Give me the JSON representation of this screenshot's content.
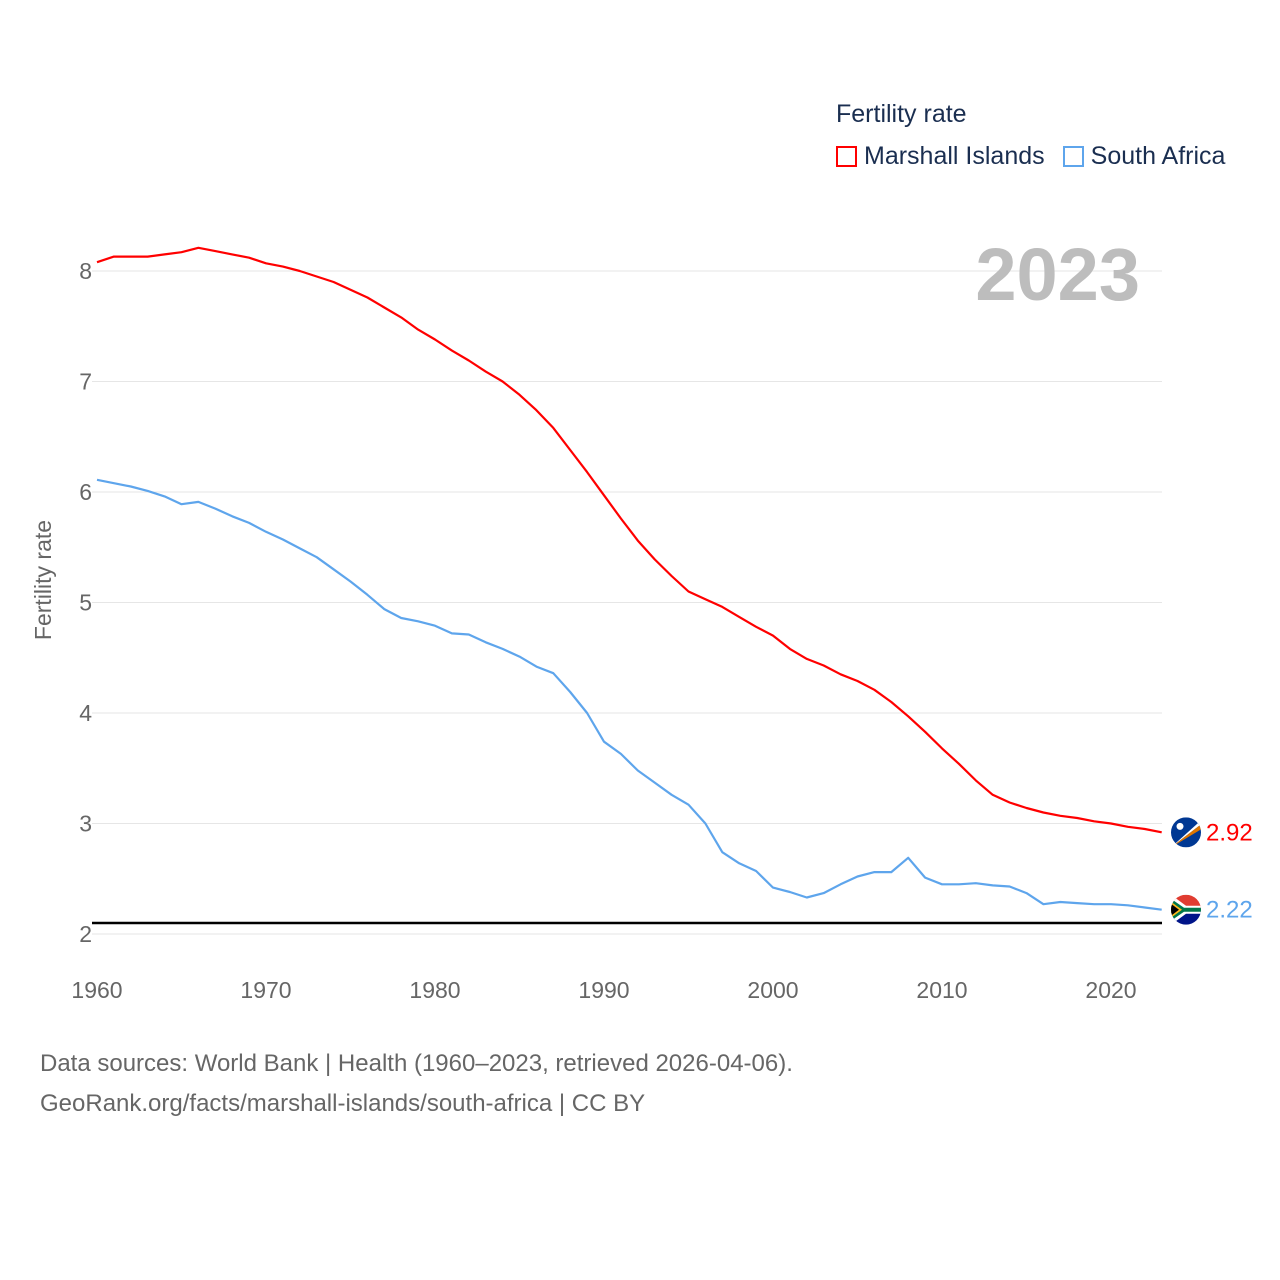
{
  "chart_data": {
    "type": "line",
    "title": "Fertility rate",
    "ylabel": "Fertility rate",
    "xlabel": "",
    "xlim": [
      1960,
      2023
    ],
    "ylim": [
      2,
      8
    ],
    "x_ticks": [
      1960,
      1970,
      1980,
      1990,
      2000,
      2010,
      2020
    ],
    "y_ticks": [
      2,
      3,
      4,
      5,
      6,
      7,
      8
    ],
    "grid": true,
    "legend_position": "top-right",
    "year_label": "2023",
    "reference_line": {
      "value": 2.1,
      "color": "#000000"
    },
    "x": [
      1960,
      1961,
      1962,
      1963,
      1964,
      1965,
      1966,
      1967,
      1968,
      1969,
      1970,
      1971,
      1972,
      1973,
      1974,
      1975,
      1976,
      1977,
      1978,
      1979,
      1980,
      1981,
      1982,
      1983,
      1984,
      1985,
      1986,
      1987,
      1988,
      1989,
      1990,
      1991,
      1992,
      1993,
      1994,
      1995,
      1996,
      1997,
      1998,
      1999,
      2000,
      2001,
      2002,
      2003,
      2004,
      2005,
      2006,
      2007,
      2008,
      2009,
      2010,
      2011,
      2012,
      2013,
      2014,
      2015,
      2016,
      2017,
      2018,
      2019,
      2020,
      2021,
      2022,
      2023
    ],
    "series": [
      {
        "name": "Marshall Islands",
        "color": "#ff0000",
        "end_label": "2.92",
        "values": [
          8.08,
          8.13,
          8.13,
          8.13,
          8.15,
          8.17,
          8.21,
          8.18,
          8.15,
          8.12,
          8.07,
          8.04,
          8.0,
          7.95,
          7.9,
          7.83,
          7.76,
          7.67,
          7.58,
          7.47,
          7.38,
          7.28,
          7.19,
          7.09,
          7.0,
          6.88,
          6.74,
          6.58,
          6.38,
          6.18,
          5.97,
          5.76,
          5.56,
          5.39,
          5.24,
          5.1,
          5.03,
          4.96,
          4.87,
          4.78,
          4.7,
          4.58,
          4.49,
          4.43,
          4.35,
          4.29,
          4.21,
          4.1,
          3.97,
          3.83,
          3.68,
          3.54,
          3.39,
          3.26,
          3.19,
          3.14,
          3.1,
          3.07,
          3.05,
          3.02,
          3.0,
          2.97,
          2.95,
          2.92
        ]
      },
      {
        "name": "South Africa",
        "color": "#5ea5ec",
        "end_label": "2.22",
        "values": [
          6.11,
          6.08,
          6.05,
          6.01,
          5.96,
          5.89,
          5.91,
          5.85,
          5.78,
          5.72,
          5.64,
          5.57,
          5.49,
          5.41,
          5.3,
          5.19,
          5.07,
          4.94,
          4.86,
          4.83,
          4.79,
          4.72,
          4.71,
          4.64,
          4.58,
          4.51,
          4.42,
          4.36,
          4.19,
          4.0,
          3.74,
          3.63,
          3.48,
          3.37,
          3.26,
          3.17,
          3.0,
          2.74,
          2.64,
          2.57,
          2.42,
          2.38,
          2.33,
          2.37,
          2.45,
          2.52,
          2.56,
          2.56,
          2.69,
          2.51,
          2.45,
          2.45,
          2.46,
          2.44,
          2.43,
          2.37,
          2.27,
          2.29,
          2.28,
          2.27,
          2.27,
          2.26,
          2.24,
          2.22
        ]
      }
    ]
  },
  "source": {
    "line1": "Data sources: World Bank | Health (1960–2023, retrieved 2026-04-06).",
    "line2": "GeoRank.org/facts/marshall-islands/south-africa | CC BY"
  }
}
